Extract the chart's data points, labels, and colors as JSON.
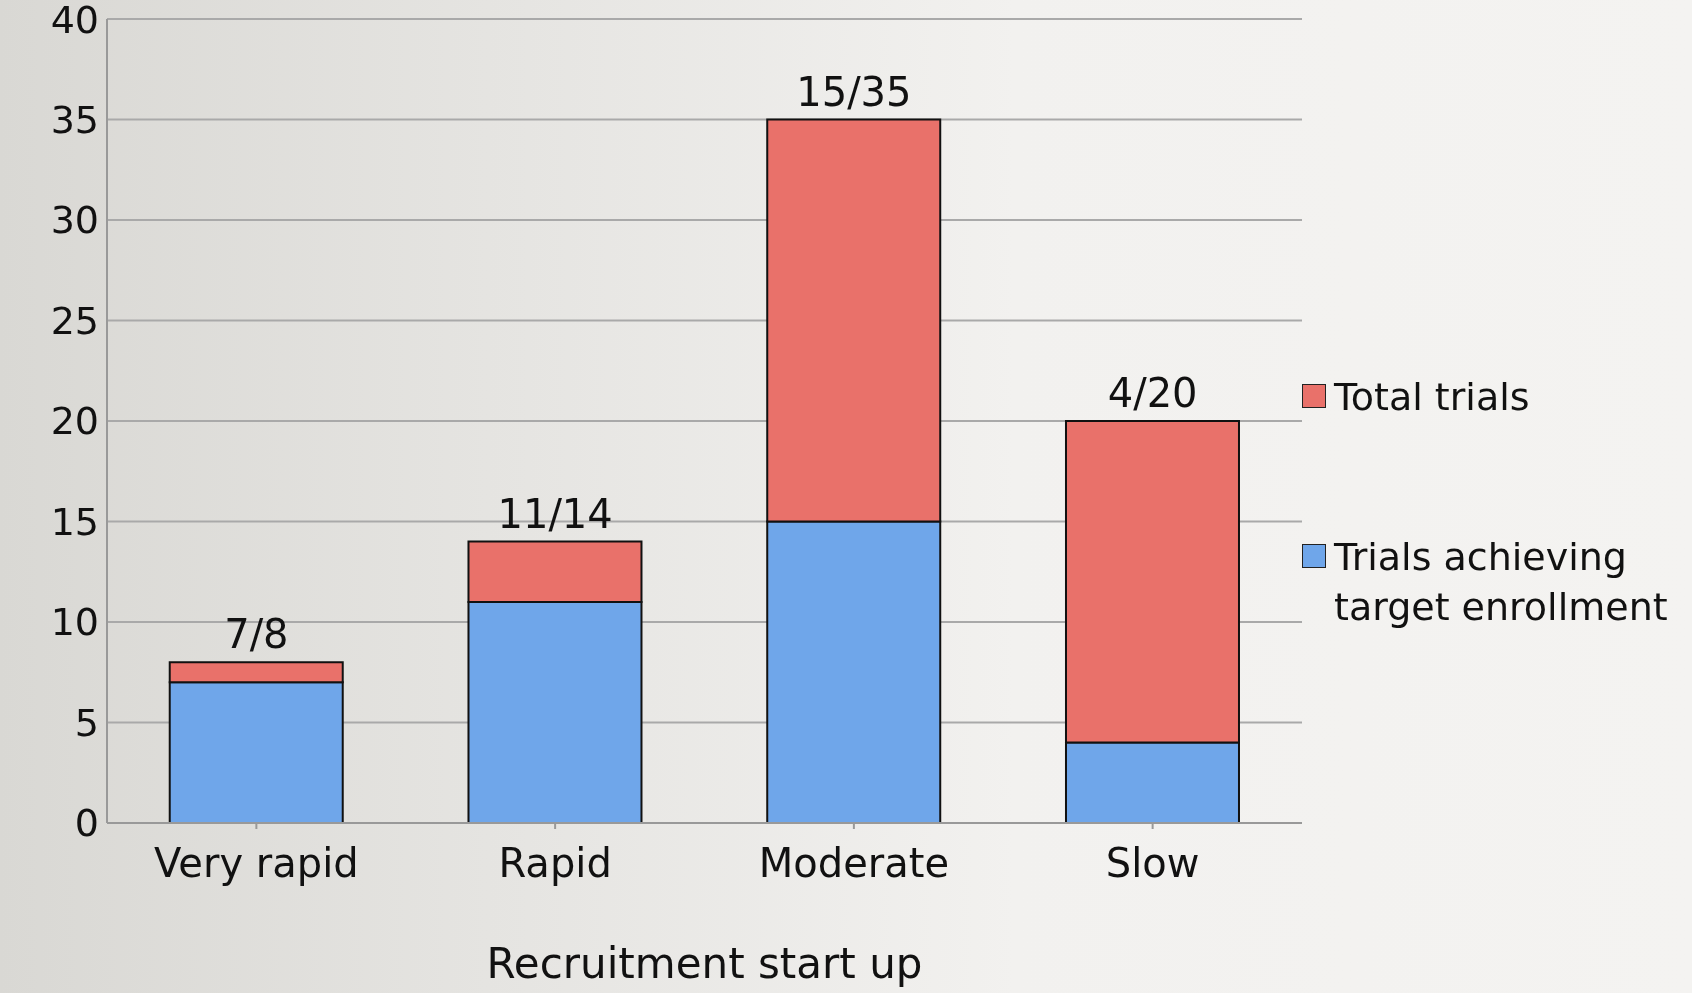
{
  "chart_data": {
    "type": "bar",
    "stacked": true,
    "xlabel": "Recruitment start up",
    "categories": [
      "Very rapid",
      "Rapid",
      "Moderate",
      "Slow"
    ],
    "series": [
      {
        "name": "Trials achieving target enrollment",
        "color": "#6fa6ea",
        "values": [
          7,
          11,
          15,
          4
        ]
      },
      {
        "name": "Total trials",
        "color": "#e9716a",
        "values": [
          1,
          3,
          20,
          16
        ]
      }
    ],
    "annotations": [
      {
        "text": "7/8",
        "x": "Very rapid",
        "y": 8
      },
      {
        "text": "11/14",
        "x": "Rapid",
        "y": 14
      },
      {
        "text": "15/35",
        "x": "Moderate",
        "y": 35
      },
      {
        "text": "4/20",
        "x": "Slow",
        "y": 20
      }
    ],
    "ylim": [
      0,
      40
    ],
    "yticks": [
      0,
      5,
      10,
      15,
      20,
      25,
      30,
      35,
      40
    ],
    "grid": "y",
    "legend": "right"
  }
}
